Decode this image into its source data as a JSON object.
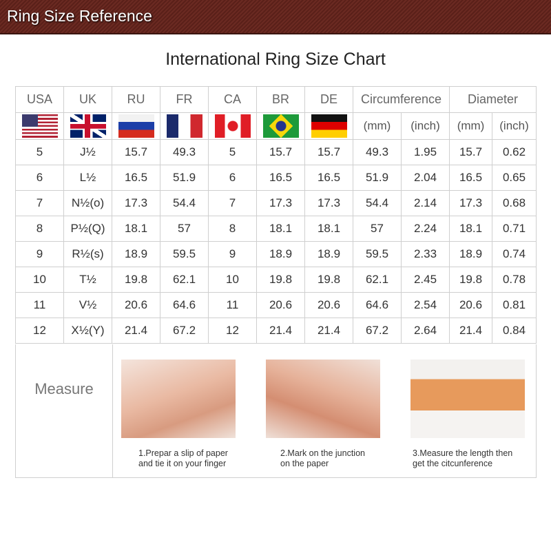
{
  "banner": {
    "title": "Ring Size Reference"
  },
  "chart_title": "International Ring Size Chart",
  "headers": [
    "USA",
    "UK",
    "RU",
    "FR",
    "CA",
    "BR",
    "DE",
    "Circumference",
    "Diameter"
  ],
  "flags": [
    "us-flag-icon",
    "uk-flag-icon",
    "russia-flag-icon",
    "france-flag-icon",
    "canada-flag-icon",
    "brazil-flag-icon",
    "germany-flag-icon"
  ],
  "units": [
    "(mm)",
    "(inch)",
    "(mm)",
    "(inch)"
  ],
  "rows": [
    [
      "5",
      "J½",
      "15.7",
      "49.3",
      "5",
      "15.7",
      "15.7",
      "49.3",
      "1.95",
      "15.7",
      "0.62"
    ],
    [
      "6",
      "L½",
      "16.5",
      "51.9",
      "6",
      "16.5",
      "16.5",
      "51.9",
      "2.04",
      "16.5",
      "0.65"
    ],
    [
      "7",
      "N½(o)",
      "17.3",
      "54.4",
      "7",
      "17.3",
      "17.3",
      "54.4",
      "2.14",
      "17.3",
      "0.68"
    ],
    [
      "8",
      "P½(Q)",
      "18.1",
      "57",
      "8",
      "18.1",
      "18.1",
      "57",
      "2.24",
      "18.1",
      "0.71"
    ],
    [
      "9",
      "R½(s)",
      "18.9",
      "59.5",
      "9",
      "18.9",
      "18.9",
      "59.5",
      "2.33",
      "18.9",
      "0.74"
    ],
    [
      "10",
      "T½",
      "19.8",
      "62.1",
      "10",
      "19.8",
      "19.8",
      "62.1",
      "2.45",
      "19.8",
      "0.78"
    ],
    [
      "11",
      "V½",
      "20.6",
      "64.6",
      "11",
      "20.6",
      "20.6",
      "64.6",
      "2.54",
      "20.6",
      "0.81"
    ],
    [
      "12",
      "X½(Y)",
      "21.4",
      "67.2",
      "12",
      "21.4",
      "21.4",
      "67.2",
      "2.64",
      "21.4",
      "0.84"
    ]
  ],
  "measure": {
    "label": "Measure",
    "steps": [
      {
        "line1": "1.Prepar a slip of paper",
        "line2": "and tie it on your finger"
      },
      {
        "line1": "2.Mark on the junction",
        "line2": "on the paper"
      },
      {
        "line1": "3.Measure the length then",
        "line2": "get the citcunference"
      }
    ]
  }
}
